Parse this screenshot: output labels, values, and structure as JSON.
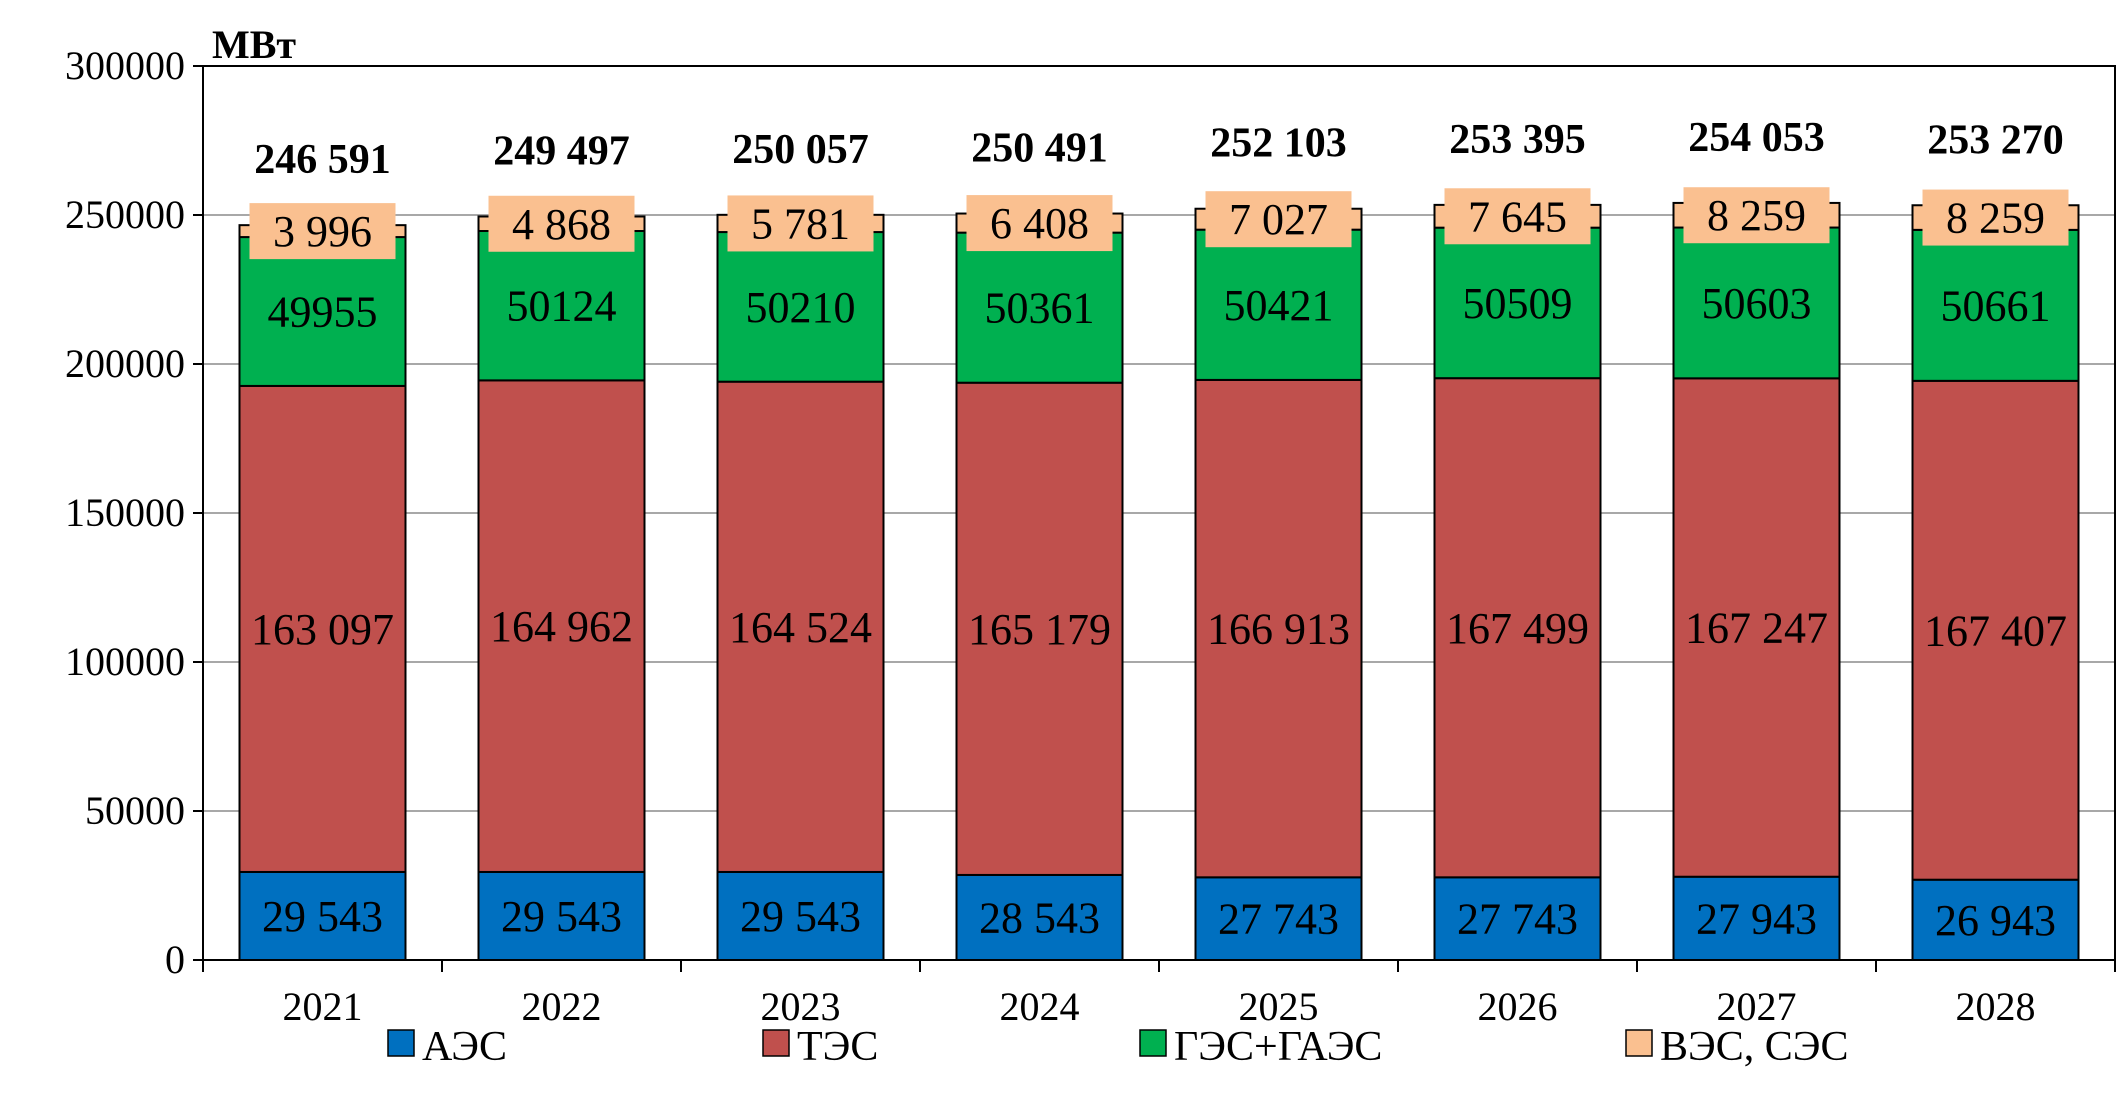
{
  "chart_data": {
    "type": "bar",
    "stacked": true,
    "unit_label": "МВт",
    "categories": [
      "2021",
      "2022",
      "2023",
      "2024",
      "2025",
      "2026",
      "2027",
      "2028"
    ],
    "series": [
      {
        "name": "АЭС",
        "color": "#0070C0",
        "values": [
          29543,
          29543,
          29543,
          28543,
          27743,
          27743,
          27943,
          26943
        ],
        "labels": [
          "29 543",
          "29 543",
          "29 543",
          "28 543",
          "27 743",
          "27 743",
          "27 943",
          "26 943"
        ]
      },
      {
        "name": "ТЭС",
        "color": "#C0504D",
        "values": [
          163097,
          164962,
          164524,
          165179,
          166913,
          167499,
          167247,
          167407
        ],
        "labels": [
          "163 097",
          "164 962",
          "164 524",
          "165 179",
          "166 913",
          "167 499",
          "167 247",
          "167 407"
        ]
      },
      {
        "name": "ГЭС+ГАЭС",
        "color": "#00B050",
        "values": [
          49955,
          50124,
          50210,
          50361,
          50421,
          50509,
          50603,
          50661
        ],
        "labels": [
          "49955",
          "50124",
          "50210",
          "50361",
          "50421",
          "50509",
          "50603",
          "50661"
        ]
      },
      {
        "name": "ВЭС, СЭС",
        "color": "#FAC090",
        "values": [
          3996,
          4868,
          5781,
          6408,
          7027,
          7645,
          8259,
          8259
        ],
        "labels": [
          "3 996",
          "4 868",
          "5 781",
          "6 408",
          "7 027",
          "7 645",
          "8 259",
          "8 259"
        ]
      }
    ],
    "totals": [
      "246 591",
      "249 497",
      "250 057",
      "250 491",
      "252 103",
      "253 395",
      "254 053",
      "253 270"
    ],
    "y_ticks": [
      "0",
      "50000",
      "100000",
      "150000",
      "200000",
      "250000",
      "300000"
    ],
    "y_tick_values": [
      0,
      50000,
      100000,
      150000,
      200000,
      250000,
      300000
    ],
    "ylim": [
      0,
      300000
    ],
    "grid": true,
    "legend_position": "bottom"
  }
}
